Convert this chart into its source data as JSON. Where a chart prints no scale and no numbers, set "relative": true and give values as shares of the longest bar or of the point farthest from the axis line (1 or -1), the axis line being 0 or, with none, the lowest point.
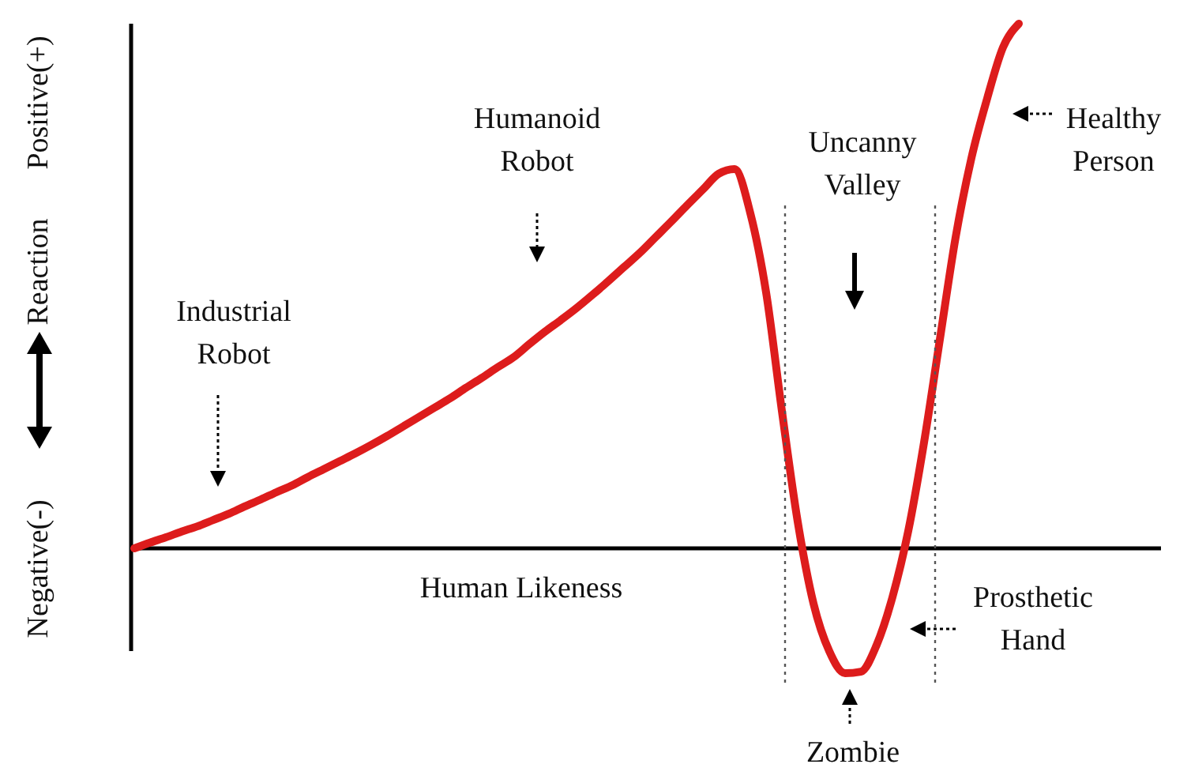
{
  "chart_data": {
    "type": "line",
    "relative": true,
    "xlabel": "Human Likeness",
    "ylabel": "Reaction",
    "categories": [
      null,
      null,
      null,
      null,
      null,
      null,
      null,
      null,
      null,
      null,
      null,
      null,
      null,
      null,
      null,
      null,
      null,
      null,
      null,
      null,
      null,
      null,
      null,
      null,
      null,
      null,
      null,
      null,
      null,
      null,
      null,
      null,
      null,
      null,
      null,
      null,
      null,
      null,
      null,
      null,
      null,
      null,
      null,
      null,
      null,
      null,
      null,
      null,
      null,
      null,
      null,
      null,
      null,
      null,
      null,
      null,
      null
    ],
    "series": [
      {
        "color": "#dd1c1c",
        "values": [
          0,
          0.011,
          0.021,
          0.032,
          0.042,
          0.054,
          0.066,
          0.08,
          0.093,
          0.107,
          0.12,
          0.136,
          0.151,
          0.166,
          0.181,
          0.197,
          0.214,
          0.232,
          0.25,
          0.268,
          0.286,
          0.306,
          0.325,
          0.345,
          0.364,
          0.389,
          0.413,
          0.435,
          0.458,
          0.483,
          0.509,
          0.536,
          0.563,
          0.593,
          0.623,
          0.654,
          0.684,
          0.714,
          0.723,
          0.639,
          0.488,
          0.262,
          0.051,
          -0.105,
          -0.196,
          -0.238,
          -0.235,
          -0.184,
          -0.093,
          0.033,
          0.202,
          0.398,
          0.593,
          0.744,
          0.858,
          0.955,
          1
        ]
      }
    ],
    "annotations": [
      "Positive(+)",
      "Negative(-)",
      "Industrial Robot",
      "Humanoid Robot",
      "Uncanny Valley",
      "Healthy Person",
      "Prosthetic Hand",
      "Zombie"
    ],
    "marker": "none",
    "line_style": "solid"
  }
}
